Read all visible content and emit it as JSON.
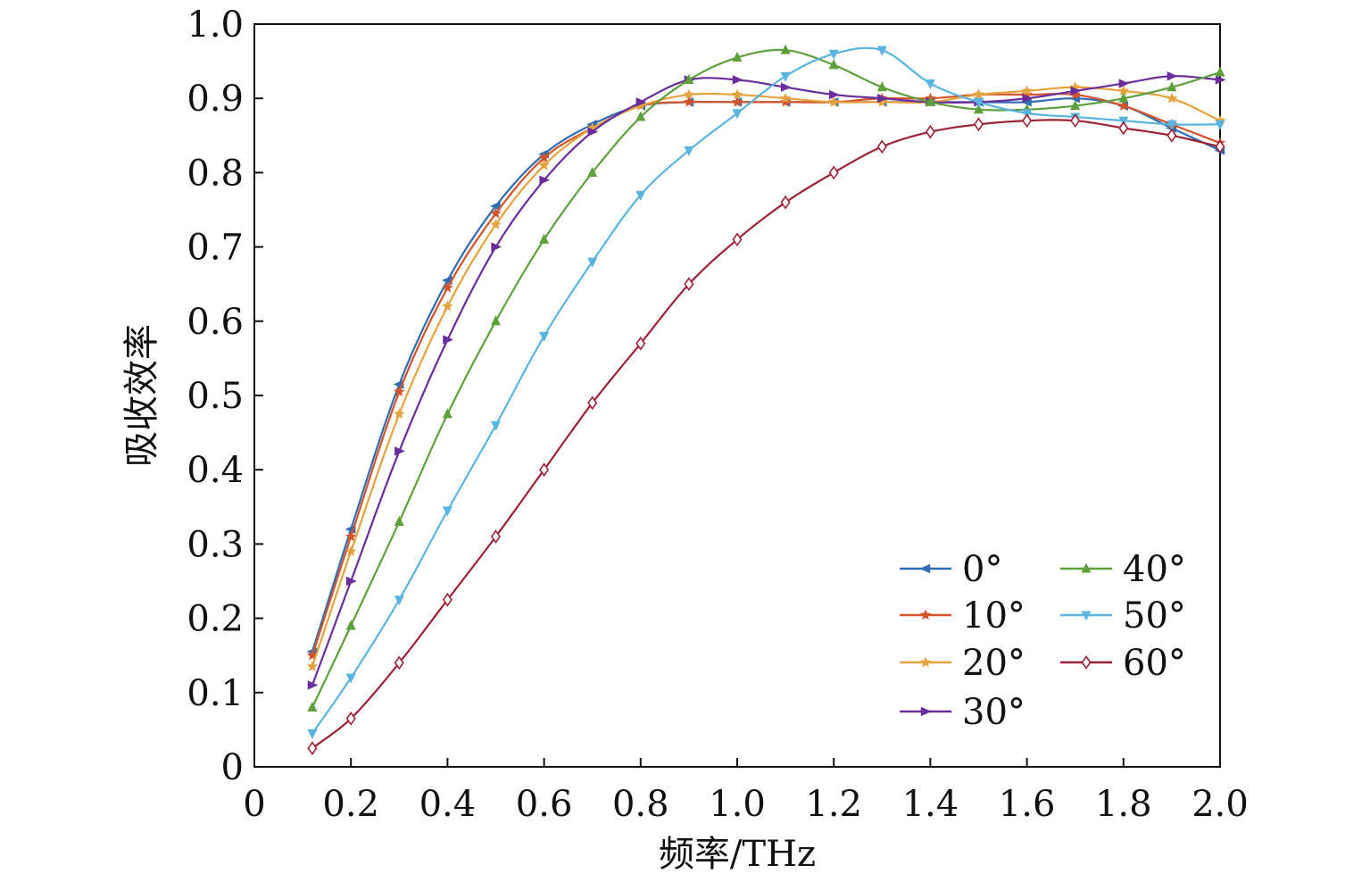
{
  "chart_data": {
    "type": "line",
    "title": "",
    "xlabel": "频率/THz",
    "ylabel": "吸收效率",
    "xlim": [
      0,
      2.0
    ],
    "ylim": [
      0,
      1.0
    ],
    "x_ticks": [
      "0",
      "0.2",
      "0.4",
      "0.6",
      "0.8",
      "1.0",
      "1.2",
      "1.4",
      "1.6",
      "1.8",
      "2.0"
    ],
    "y_ticks": [
      "0",
      "0.1",
      "0.2",
      "0.3",
      "0.4",
      "0.5",
      "0.6",
      "0.7",
      "0.8",
      "0.9",
      "1.0"
    ],
    "grid": false,
    "legend_position": "lower-right",
    "x": [
      0.12,
      0.2,
      0.3,
      0.4,
      0.5,
      0.6,
      0.7,
      0.8,
      0.9,
      1.0,
      1.1,
      1.2,
      1.3,
      1.4,
      1.5,
      1.6,
      1.7,
      1.8,
      1.9,
      2.0
    ],
    "series": [
      {
        "name": "0°",
        "color": "#2e6db4",
        "marker": "triangle-left",
        "values": [
          0.155,
          0.32,
          0.515,
          0.655,
          0.755,
          0.825,
          0.865,
          0.89,
          0.895,
          0.895,
          0.895,
          0.895,
          0.895,
          0.895,
          0.895,
          0.895,
          0.9,
          0.89,
          0.86,
          0.83
        ]
      },
      {
        "name": "10°",
        "color": "#d4532b",
        "marker": "star",
        "values": [
          0.15,
          0.31,
          0.505,
          0.645,
          0.745,
          0.82,
          0.86,
          0.89,
          0.895,
          0.895,
          0.895,
          0.895,
          0.9,
          0.9,
          0.905,
          0.905,
          0.905,
          0.89,
          0.865,
          0.84
        ]
      },
      {
        "name": "20°",
        "color": "#e6a23c",
        "marker": "star",
        "values": [
          0.135,
          0.29,
          0.475,
          0.62,
          0.73,
          0.81,
          0.86,
          0.89,
          0.905,
          0.905,
          0.9,
          0.895,
          0.895,
          0.895,
          0.905,
          0.91,
          0.915,
          0.91,
          0.9,
          0.87
        ]
      },
      {
        "name": "30°",
        "color": "#6a2d9c",
        "marker": "triangle-right",
        "values": [
          0.11,
          0.25,
          0.425,
          0.575,
          0.7,
          0.79,
          0.855,
          0.895,
          0.925,
          0.925,
          0.915,
          0.905,
          0.9,
          0.895,
          0.895,
          0.9,
          0.91,
          0.92,
          0.93,
          0.925
        ]
      },
      {
        "name": "40°",
        "color": "#5da03c",
        "marker": "triangle-up",
        "values": [
          0.08,
          0.19,
          0.33,
          0.475,
          0.6,
          0.71,
          0.8,
          0.875,
          0.925,
          0.955,
          0.965,
          0.945,
          0.915,
          0.895,
          0.885,
          0.885,
          0.89,
          0.9,
          0.915,
          0.935
        ]
      },
      {
        "name": "50°",
        "color": "#5ab4e0",
        "marker": "triangle-down",
        "values": [
          0.045,
          0.12,
          0.225,
          0.345,
          0.46,
          0.58,
          0.68,
          0.77,
          0.83,
          0.88,
          0.93,
          0.96,
          0.965,
          0.92,
          0.895,
          0.88,
          0.875,
          0.87,
          0.865,
          0.865
        ]
      },
      {
        "name": "60°",
        "color": "#9b2335",
        "marker": "diamond",
        "values": [
          0.025,
          0.065,
          0.14,
          0.225,
          0.31,
          0.4,
          0.49,
          0.57,
          0.65,
          0.71,
          0.76,
          0.8,
          0.835,
          0.855,
          0.865,
          0.87,
          0.87,
          0.86,
          0.85,
          0.835
        ]
      }
    ]
  }
}
